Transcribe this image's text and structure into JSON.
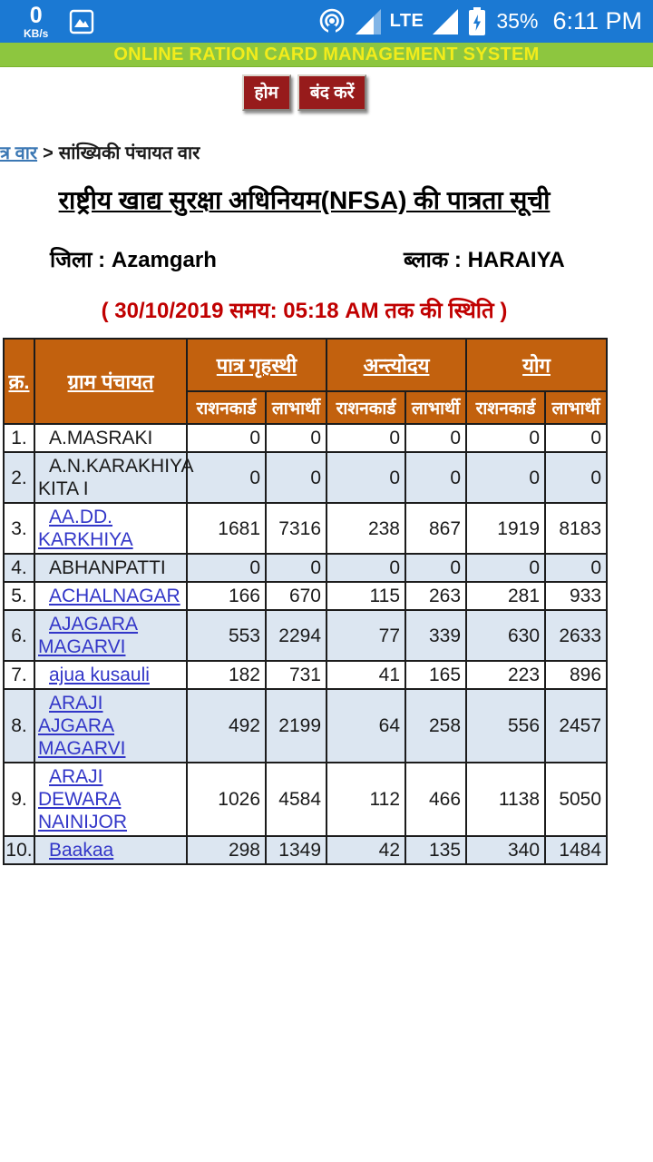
{
  "status_bar": {
    "net_speed_value": "0",
    "net_speed_unit": "KB/s",
    "network_type": "LTE",
    "battery_percent": "35%",
    "time": "6:11 PM",
    "bg_color": "#1b79d3"
  },
  "app_header": {
    "title": "ONLINE RATION CARD MANAGEMENT SYSTEM",
    "bg_color": "#8dc63f",
    "text_color": "#f2ec1b"
  },
  "toolbar": {
    "home_label": "होम",
    "close_label": "बंद करें",
    "button_color": "#971b1b"
  },
  "breadcrumb": {
    "link_text": "त्र वार",
    "separator": ">",
    "current": "सांख्यिकी पंचायत वार"
  },
  "page": {
    "title": "राष्ट्रीय खाद्य सुरक्षा अधिनियम(NFSA) की पात्रता सूची",
    "district_label": "जिला :",
    "district_value": "Azamgarh",
    "block_label": "ब्लाक :",
    "block_value": "HARAIYA",
    "status_line": "( 30/10/2019 समय: 05:18 AM तक की स्थिति )"
  },
  "table": {
    "header_color": "#c2610e",
    "alt_row_color": "#dce6f1",
    "link_color": "#3236c8",
    "col_serial": "क्र.",
    "col_panchayat": "ग्राम पंचायत",
    "groups": [
      {
        "label": "पात्र गृहस्थी"
      },
      {
        "label": "अन्त्योदय"
      },
      {
        "label": "योग"
      }
    ],
    "sub_ration": "राशनकार्ड",
    "sub_benef": "लाभार्थी",
    "rows": [
      {
        "no": "1.",
        "name": "A.MASRAKI",
        "link": false,
        "values": [
          "0",
          "0",
          "0",
          "0",
          "0",
          "0"
        ]
      },
      {
        "no": "2.",
        "name": "A.N.KARAKHIYA KITA I",
        "link": false,
        "values": [
          "0",
          "0",
          "0",
          "0",
          "0",
          "0"
        ]
      },
      {
        "no": "3.",
        "name": "AA.DD. KARKHIYA",
        "link": true,
        "values": [
          "1681",
          "7316",
          "238",
          "867",
          "1919",
          "8183"
        ]
      },
      {
        "no": "4.",
        "name": "ABHANPATTI",
        "link": false,
        "values": [
          "0",
          "0",
          "0",
          "0",
          "0",
          "0"
        ]
      },
      {
        "no": "5.",
        "name": "ACHALNAGAR",
        "link": true,
        "values": [
          "166",
          "670",
          "115",
          "263",
          "281",
          "933"
        ]
      },
      {
        "no": "6.",
        "name": "AJAGARA MAGARVI",
        "link": true,
        "values": [
          "553",
          "2294",
          "77",
          "339",
          "630",
          "2633"
        ]
      },
      {
        "no": "7.",
        "name": "ajua kusauli",
        "link": true,
        "values": [
          "182",
          "731",
          "41",
          "165",
          "223",
          "896"
        ]
      },
      {
        "no": "8.",
        "name": "ARAJI AJGARA MAGARVI",
        "link": true,
        "values": [
          "492",
          "2199",
          "64",
          "258",
          "556",
          "2457"
        ]
      },
      {
        "no": "9.",
        "name": "ARAJI DEWARA NAINIJOR",
        "link": true,
        "values": [
          "1026",
          "4584",
          "112",
          "466",
          "1138",
          "5050"
        ]
      },
      {
        "no": "10.",
        "name": "Baakaa",
        "link": true,
        "values": [
          "298",
          "1349",
          "42",
          "135",
          "340",
          "1484"
        ]
      }
    ]
  }
}
